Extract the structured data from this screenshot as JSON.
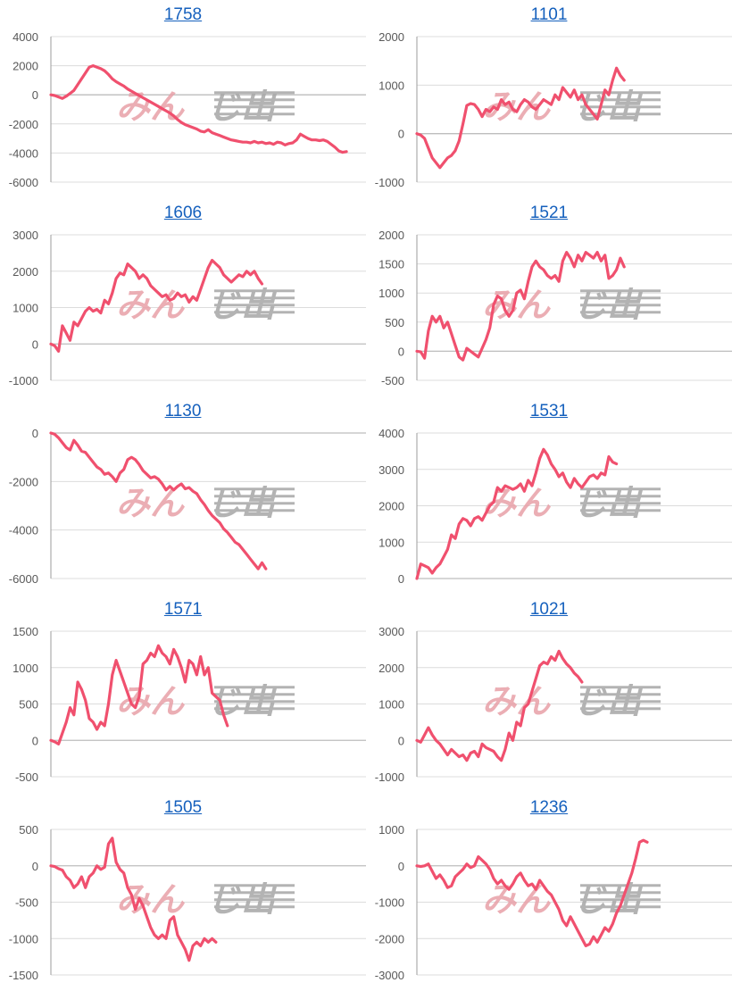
{
  "colors": {
    "line": "#f0506e",
    "grid": "#dcdcdc",
    "zero_line": "#bdbdbd",
    "axis": "#9e9e9e",
    "title": "#1560bd",
    "watermark_pink": "#e8a0a8",
    "watermark_gray": "#a6a6a6"
  },
  "watermark": {
    "text_kana": "みん",
    "text_bar": "じ出"
  },
  "chart_data": [
    {
      "type": "line",
      "title": "1758",
      "ylim": [
        -6000,
        4000
      ],
      "yticks": [
        4000,
        2000,
        0,
        -2000,
        -4000,
        -6000
      ],
      "y": [
        0,
        -50,
        -150,
        -250,
        -100,
        100,
        300,
        700,
        1100,
        1500,
        1900,
        2000,
        1900,
        1800,
        1650,
        1400,
        1100,
        900,
        750,
        600,
        400,
        250,
        100,
        -50,
        -200,
        -350,
        -500,
        -650,
        -800,
        -950,
        -1100,
        -1250,
        -1450,
        -1700,
        -1900,
        -2050,
        -2150,
        -2250,
        -2350,
        -2500,
        -2550,
        -2400,
        -2600,
        -2700,
        -2800,
        -2900,
        -3000,
        -3100,
        -3150,
        -3200,
        -3250,
        -3250,
        -3300,
        -3200,
        -3300,
        -3250,
        -3350,
        -3300,
        -3400,
        -3250,
        -3300,
        -3450,
        -3350,
        -3300,
        -3100,
        -2700,
        -2850,
        -3000,
        -3100,
        -3100,
        -3150,
        -3100,
        -3200,
        -3400,
        -3600,
        -3850,
        -3950,
        -3900
      ],
      "series_color": "#f0506e"
    },
    {
      "type": "line",
      "title": "1101",
      "ylim": [
        -1000,
        2000
      ],
      "yticks": [
        2000,
        1000,
        0,
        -1000
      ],
      "y": [
        0,
        -30,
        -100,
        -300,
        -500,
        -600,
        -700,
        -600,
        -500,
        -450,
        -350,
        -150,
        200,
        580,
        620,
        600,
        500,
        350,
        500,
        450,
        550,
        500,
        700,
        600,
        650,
        500,
        450,
        600,
        700,
        650,
        550,
        500,
        600,
        700,
        650,
        600,
        800,
        700,
        950,
        850,
        750,
        900,
        700,
        800,
        600,
        500,
        400,
        300,
        600,
        900,
        800,
        1100,
        1350,
        1200,
        1100
      ],
      "series_color": "#f0506e"
    },
    {
      "type": "line",
      "title": "1606",
      "ylim": [
        -1000,
        3000
      ],
      "yticks": [
        3000,
        2000,
        1000,
        0,
        -1000
      ],
      "y": [
        0,
        -50,
        -200,
        500,
        300,
        100,
        600,
        500,
        700,
        900,
        1000,
        900,
        950,
        850,
        1200,
        1100,
        1400,
        1800,
        1950,
        1900,
        2200,
        2100,
        2000,
        1800,
        1900,
        1800,
        1600,
        1500,
        1400,
        1300,
        1350,
        1200,
        1250,
        1400,
        1300,
        1350,
        1150,
        1300,
        1200,
        1500,
        1800,
        2100,
        2300,
        2200,
        2100,
        1900,
        1800,
        1700,
        1800,
        1900,
        1850,
        2000,
        1900,
        2000,
        1800,
        1650
      ],
      "series_color": "#f0506e"
    },
    {
      "type": "line",
      "title": "1521",
      "ylim": [
        -500,
        2000
      ],
      "yticks": [
        2000,
        1500,
        1000,
        500,
        0,
        -500
      ],
      "y": [
        0,
        -10,
        -120,
        350,
        600,
        500,
        600,
        400,
        500,
        300,
        100,
        -100,
        -150,
        50,
        0,
        -50,
        -100,
        50,
        200,
        400,
        800,
        950,
        900,
        700,
        600,
        700,
        1000,
        1050,
        900,
        1200,
        1450,
        1550,
        1450,
        1400,
        1300,
        1250,
        1300,
        1200,
        1550,
        1700,
        1600,
        1450,
        1650,
        1550,
        1700,
        1650,
        1600,
        1700,
        1550,
        1650,
        1250,
        1300,
        1400,
        1600,
        1450
      ],
      "series_color": "#f0506e"
    },
    {
      "type": "line",
      "title": "1130",
      "ylim": [
        -6000,
        0
      ],
      "yticks": [
        0,
        -2000,
        -4000,
        -6000
      ],
      "y": [
        0,
        -50,
        -200,
        -400,
        -600,
        -700,
        -300,
        -500,
        -750,
        -800,
        -1000,
        -1200,
        -1400,
        -1500,
        -1700,
        -1650,
        -1800,
        -2000,
        -1650,
        -1500,
        -1100,
        -1000,
        -1100,
        -1300,
        -1550,
        -1700,
        -1850,
        -1800,
        -1900,
        -2100,
        -2350,
        -2200,
        -2350,
        -2200,
        -2100,
        -2300,
        -2250,
        -2400,
        -2500,
        -2750,
        -2950,
        -3200,
        -3400,
        -3550,
        -3700,
        -3950,
        -4100,
        -4300,
        -4500,
        -4600,
        -4800,
        -5000,
        -5200,
        -5400,
        -5600,
        -5350,
        -5600
      ],
      "series_color": "#f0506e"
    },
    {
      "type": "line",
      "title": "1531",
      "ylim": [
        0,
        4000
      ],
      "yticks": [
        4000,
        3000,
        2000,
        1000,
        0
      ],
      "y": [
        0,
        400,
        350,
        300,
        150,
        300,
        400,
        600,
        800,
        1200,
        1100,
        1500,
        1650,
        1600,
        1450,
        1650,
        1700,
        1600,
        1800,
        2000,
        2100,
        2500,
        2400,
        2550,
        2500,
        2450,
        2500,
        2600,
        2400,
        2700,
        2550,
        2900,
        3300,
        3550,
        3400,
        3150,
        3000,
        2800,
        2900,
        2650,
        2500,
        2750,
        2600,
        2500,
        2650,
        2800,
        2850,
        2750,
        2900,
        2850,
        3350,
        3200,
        3150
      ],
      "series_color": "#f0506e"
    },
    {
      "type": "line",
      "title": "1571",
      "ylim": [
        -500,
        1500
      ],
      "yticks": [
        1500,
        1000,
        500,
        0,
        -500
      ],
      "y": [
        0,
        -20,
        -50,
        100,
        250,
        450,
        350,
        800,
        700,
        550,
        300,
        250,
        150,
        250,
        200,
        500,
        900,
        1100,
        950,
        800,
        650,
        500,
        450,
        600,
        1050,
        1100,
        1200,
        1150,
        1300,
        1200,
        1150,
        1050,
        1250,
        1150,
        1000,
        800,
        1100,
        1050,
        900,
        1150,
        900,
        1000,
        650,
        600,
        550,
        350,
        200
      ],
      "series_color": "#f0506e"
    },
    {
      "type": "line",
      "title": "1021",
      "ylim": [
        -1000,
        3000
      ],
      "yticks": [
        3000,
        2000,
        1000,
        0,
        -1000
      ],
      "y": [
        0,
        -50,
        150,
        350,
        150,
        0,
        -100,
        -250,
        -400,
        -250,
        -350,
        -450,
        -400,
        -550,
        -350,
        -300,
        -450,
        -100,
        -200,
        -250,
        -300,
        -450,
        -550,
        -250,
        200,
        0,
        500,
        400,
        900,
        1000,
        1350,
        1700,
        2050,
        2150,
        2100,
        2300,
        2200,
        2450,
        2250,
        2100,
        2000,
        1850,
        1750,
        1600
      ],
      "series_color": "#f0506e"
    },
    {
      "type": "line",
      "title": "1505",
      "ylim": [
        -1500,
        500
      ],
      "yticks": [
        500,
        0,
        -500,
        -1000,
        -1500
      ],
      "y": [
        0,
        -10,
        -40,
        -60,
        -150,
        -200,
        -300,
        -250,
        -150,
        -300,
        -150,
        -100,
        0,
        -50,
        -20,
        300,
        380,
        50,
        -50,
        -100,
        -300,
        -400,
        -600,
        -450,
        -550,
        -700,
        -850,
        -950,
        -1000,
        -950,
        -1000,
        -750,
        -700,
        -950,
        -1050,
        -1150,
        -1300,
        -1100,
        -1050,
        -1100,
        -1000,
        -1050,
        -1000,
        -1050
      ],
      "series_color": "#f0506e"
    },
    {
      "type": "line",
      "title": "1236",
      "ylim": [
        -3000,
        1000
      ],
      "yticks": [
        1000,
        0,
        -1000,
        -2000,
        -3000
      ],
      "y": [
        0,
        -20,
        0,
        50,
        -150,
        -350,
        -250,
        -400,
        -600,
        -550,
        -300,
        -200,
        -100,
        50,
        -50,
        0,
        250,
        150,
        50,
        -100,
        -350,
        -500,
        -400,
        -550,
        -650,
        -500,
        -300,
        -200,
        -400,
        -550,
        -500,
        -650,
        -400,
        -550,
        -700,
        -800,
        -1000,
        -1200,
        -1500,
        -1650,
        -1400,
        -1600,
        -1800,
        -2000,
        -2200,
        -2150,
        -1950,
        -2100,
        -1900,
        -1700,
        -1800,
        -1600,
        -1300,
        -1100,
        -800,
        -500,
        -200,
        200,
        650,
        700,
        650
      ],
      "series_color": "#f0506e"
    }
  ]
}
